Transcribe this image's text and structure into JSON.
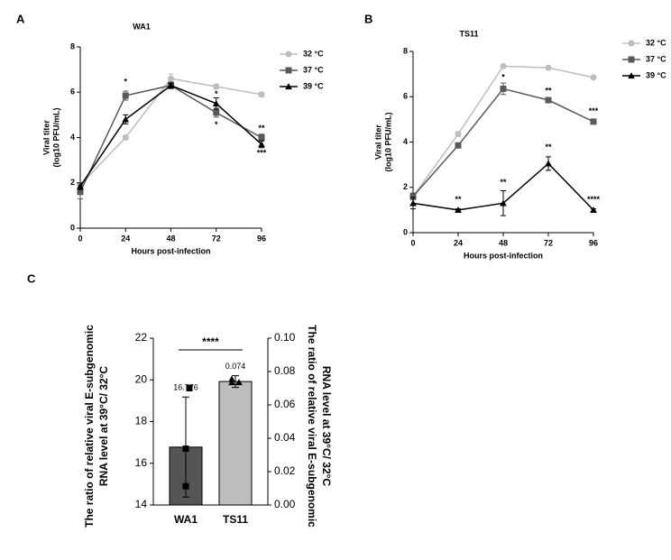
{
  "chart_data": [
    {
      "type": "line",
      "panel": "A",
      "title": "WA1",
      "xlabel": "Hours post-infection",
      "ylabel": [
        "Viral titer",
        "(log10 PFU/mL)"
      ],
      "x": [
        0,
        24,
        48,
        72,
        96
      ],
      "xlim": [
        0,
        96
      ],
      "xticks": [
        0,
        24,
        48,
        72,
        96
      ],
      "ylim": [
        0,
        8
      ],
      "yticks": [
        0,
        2,
        4,
        6,
        8
      ],
      "series": [
        {
          "name": "32 °C",
          "color": "#bdbdbd",
          "marker": "circle",
          "values": [
            1.9,
            4.0,
            6.6,
            6.25,
            5.9
          ],
          "errors": [
            0.1,
            0.1,
            0.2,
            0.1,
            0.1
          ]
        },
        {
          "name": "37 °C",
          "color": "#595959",
          "marker": "square",
          "values": [
            1.6,
            5.85,
            6.3,
            5.1,
            4.0
          ],
          "errors": [
            0.3,
            0.2,
            0.15,
            0.2,
            0.15
          ]
        },
        {
          "name": "39 °C",
          "color": "#000000",
          "marker": "triangle",
          "values": [
            1.85,
            4.8,
            6.3,
            5.5,
            3.7
          ],
          "errors": [
            0.15,
            0.2,
            0.1,
            0.25,
            0.15
          ]
        }
      ],
      "annotations": [
        {
          "text": "*",
          "x": 24,
          "y": 6.45
        },
        {
          "text": "*",
          "x": 72,
          "y": 5.9
        },
        {
          "text": "*",
          "x": 72,
          "y": 4.55
        },
        {
          "text": "**",
          "x": 96,
          "y": 4.4
        },
        {
          "text": "***",
          "x": 96,
          "y": 3.3
        }
      ]
    },
    {
      "type": "line",
      "panel": "B",
      "title": "TS11",
      "xlabel": "Hours post-infection",
      "ylabel": [
        "Viral titer",
        "(log10 PFU/mL)"
      ],
      "x": [
        0,
        24,
        48,
        72,
        96
      ],
      "xlim": [
        0,
        96
      ],
      "xticks": [
        0,
        24,
        48,
        72,
        96
      ],
      "ylim": [
        0,
        8
      ],
      "yticks": [
        0,
        2,
        4,
        6,
        8
      ],
      "series": [
        {
          "name": "32 °C",
          "color": "#bdbdbd",
          "marker": "circle",
          "values": [
            1.6,
            4.35,
            7.35,
            7.28,
            6.85
          ],
          "errors": [
            0.1,
            0.1,
            0.05,
            0.05,
            0.05
          ]
        },
        {
          "name": "37 °C",
          "color": "#595959",
          "marker": "square",
          "values": [
            1.6,
            3.85,
            6.35,
            5.85,
            4.9
          ],
          "errors": [
            0.15,
            0.1,
            0.25,
            0.1,
            0.1
          ]
        },
        {
          "name": "39 °C",
          "color": "#000000",
          "marker": "triangle",
          "values": [
            1.3,
            1.0,
            1.3,
            3.05,
            1.0
          ],
          "errors": [
            0.25,
            0.05,
            0.55,
            0.3,
            0.05
          ]
        }
      ],
      "annotations": [
        {
          "text": "*",
          "x": 48,
          "y": 6.85
        },
        {
          "text": "**",
          "x": 72,
          "y": 6.25
        },
        {
          "text": "***",
          "x": 96,
          "y": 5.35
        },
        {
          "text": "**",
          "x": 24,
          "y": 1.45
        },
        {
          "text": "**",
          "x": 48,
          "y": 2.2
        },
        {
          "text": "**",
          "x": 72,
          "y": 3.75
        },
        {
          "text": "****",
          "x": 96,
          "y": 1.45
        }
      ]
    },
    {
      "type": "bar",
      "panel": "C",
      "ylabel": [
        "The ratio of relative viral E-subgenomic",
        "RNA level at 39°C/ 32°C"
      ],
      "y2label": [
        "The ratio of relative viral E-subgenomic",
        "RNA level at 39°C/ 32°C"
      ],
      "ylim": [
        14,
        22
      ],
      "yticks": [
        14,
        16,
        18,
        20,
        22
      ],
      "y2lim": [
        0,
        0.1
      ],
      "y2ticks": [
        {
          "value": 0,
          "label": "0.00"
        },
        {
          "value": 0.02,
          "label": "0.02"
        },
        {
          "value": 0.04,
          "label": "0.04"
        },
        {
          "value": 0.06,
          "label": "0.06"
        },
        {
          "value": 0.08,
          "label": "0.08"
        },
        {
          "value": 0.1,
          "label": "0.10"
        }
      ],
      "categories": [
        "WA1",
        "TS11"
      ],
      "bars": [
        {
          "axis": "y",
          "color": "#555555",
          "marker": "square",
          "value": 16.776,
          "error": 2.4,
          "points": [
            19.6,
            16.7,
            14.9
          ]
        },
        {
          "axis": "y2",
          "color": "#bdbdbd",
          "marker": "triangle",
          "value": 0.074,
          "error": 0.0035,
          "points": [
            0.0735,
            0.0735,
            0.0755
          ]
        }
      ],
      "significance": "****"
    }
  ]
}
